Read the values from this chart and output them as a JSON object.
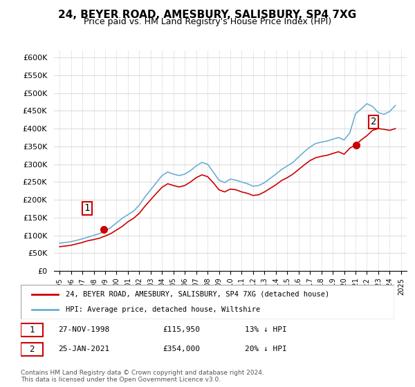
{
  "title": "24, BEYER ROAD, AMESBURY, SALISBURY, SP4 7XG",
  "subtitle": "Price paid vs. HM Land Registry's House Price Index (HPI)",
  "ylabel_ticks": [
    "£0",
    "£50K",
    "£100K",
    "£150K",
    "£200K",
    "£250K",
    "£300K",
    "£350K",
    "£400K",
    "£450K",
    "£500K",
    "£550K",
    "£600K"
  ],
  "ylim": [
    0,
    620000
  ],
  "hpi_color": "#6baed6",
  "price_color": "#cc0000",
  "marker_color": "#cc0000",
  "background_color": "#ffffff",
  "grid_color": "#dddddd",
  "legend_entry1": "24, BEYER ROAD, AMESBURY, SALISBURY, SP4 7XG (detached house)",
  "legend_entry2": "HPI: Average price, detached house, Wiltshire",
  "sale1_label": "1",
  "sale1_date": "27-NOV-1998",
  "sale1_price": "£115,950",
  "sale1_hpi": "13% ↓ HPI",
  "sale1_year": 1998.9,
  "sale1_value": 115950,
  "sale2_label": "2",
  "sale2_date": "25-JAN-2021",
  "sale2_price": "£354,000",
  "sale2_hpi": "20% ↓ HPI",
  "sale2_year": 2021.07,
  "sale2_value": 354000,
  "footnote": "Contains HM Land Registry data © Crown copyright and database right 2024.\nThis data is licensed under the Open Government Licence v3.0.",
  "hpi_x": [
    1995.0,
    1995.5,
    1996.0,
    1996.5,
    1997.0,
    1997.5,
    1998.0,
    1998.5,
    1999.0,
    1999.5,
    2000.0,
    2000.5,
    2001.0,
    2001.5,
    2002.0,
    2002.5,
    2003.0,
    2003.5,
    2004.0,
    2004.5,
    2005.0,
    2005.5,
    2006.0,
    2006.5,
    2007.0,
    2007.5,
    2008.0,
    2008.5,
    2009.0,
    2009.5,
    2010.0,
    2010.5,
    2011.0,
    2011.5,
    2012.0,
    2012.5,
    2013.0,
    2013.5,
    2014.0,
    2014.5,
    2015.0,
    2015.5,
    2016.0,
    2016.5,
    2017.0,
    2017.5,
    2018.0,
    2018.5,
    2019.0,
    2019.5,
    2020.0,
    2020.5,
    2021.0,
    2021.5,
    2022.0,
    2022.5,
    2023.0,
    2023.5,
    2024.0,
    2024.5
  ],
  "hpi_y": [
    78000,
    80000,
    82000,
    86000,
    90000,
    95000,
    100000,
    105000,
    112000,
    122000,
    135000,
    148000,
    158000,
    168000,
    185000,
    208000,
    228000,
    248000,
    268000,
    278000,
    272000,
    268000,
    272000,
    282000,
    295000,
    305000,
    300000,
    278000,
    255000,
    248000,
    258000,
    255000,
    250000,
    245000,
    238000,
    240000,
    248000,
    260000,
    272000,
    285000,
    295000,
    305000,
    320000,
    335000,
    348000,
    358000,
    362000,
    365000,
    370000,
    375000,
    368000,
    388000,
    442000,
    455000,
    470000,
    462000,
    445000,
    440000,
    448000,
    465000
  ],
  "price_x": [
    1995.0,
    1995.5,
    1996.0,
    1996.5,
    1997.0,
    1997.5,
    1998.0,
    1998.5,
    1999.0,
    1999.5,
    2000.0,
    2000.5,
    2001.0,
    2001.5,
    2002.0,
    2002.5,
    2003.0,
    2003.5,
    2004.0,
    2004.5,
    2005.0,
    2005.5,
    2006.0,
    2006.5,
    2007.0,
    2007.5,
    2008.0,
    2008.5,
    2009.0,
    2009.5,
    2010.0,
    2010.5,
    2011.0,
    2011.5,
    2012.0,
    2012.5,
    2013.0,
    2013.5,
    2014.0,
    2014.5,
    2015.0,
    2015.5,
    2016.0,
    2016.5,
    2017.0,
    2017.5,
    2018.0,
    2018.5,
    2019.0,
    2019.5,
    2020.0,
    2020.5,
    2021.0,
    2021.5,
    2022.0,
    2022.5,
    2023.0,
    2023.5,
    2024.0,
    2024.5
  ],
  "price_y": [
    68000,
    70000,
    72000,
    76000,
    80000,
    85000,
    88000,
    92000,
    98000,
    105000,
    115000,
    125000,
    138000,
    148000,
    162000,
    182000,
    200000,
    218000,
    235000,
    245000,
    240000,
    236000,
    240000,
    250000,
    262000,
    270000,
    265000,
    248000,
    228000,
    222000,
    230000,
    228000,
    222000,
    218000,
    212000,
    214000,
    222000,
    232000,
    242000,
    254000,
    262000,
    272000,
    285000,
    298000,
    310000,
    318000,
    322000,
    325000,
    330000,
    335000,
    328000,
    345000,
    354000,
    368000,
    380000,
    395000,
    400000,
    398000,
    395000,
    400000
  ]
}
